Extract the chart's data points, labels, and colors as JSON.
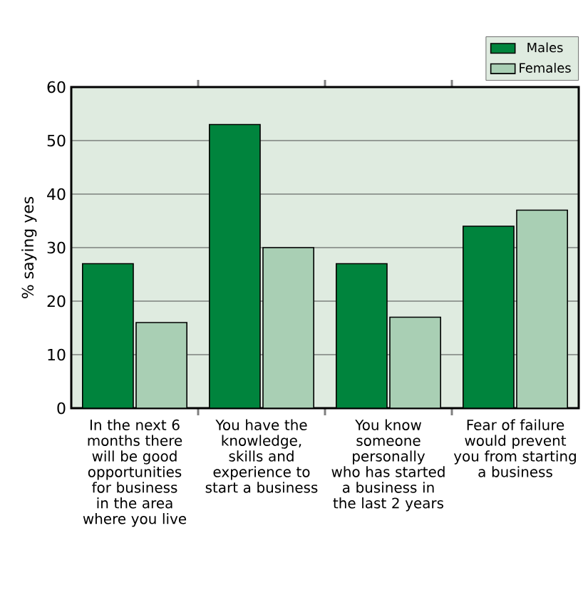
{
  "chart_data": {
    "type": "bar",
    "ylabel": "% saying yes",
    "categories": [
      "In the next 6 months there will be good opportunities for business in the area where you live",
      "You have the knowledge, skills and experience to start a business",
      "You know someone personally who has started a business in the last 2 years",
      "Fear of failure would prevent you from starting a business"
    ],
    "series": [
      {
        "name": "Males",
        "color": "#00843d",
        "values": [
          27,
          53,
          27,
          34
        ]
      },
      {
        "name": "Females",
        "color": "#a9cfb4",
        "values": [
          16,
          30,
          17,
          37
        ]
      }
    ],
    "ylim": [
      0,
      60
    ],
    "yticks": [
      0,
      10,
      20,
      30,
      40,
      50,
      60
    ],
    "grid": "y",
    "legend": "top right"
  }
}
